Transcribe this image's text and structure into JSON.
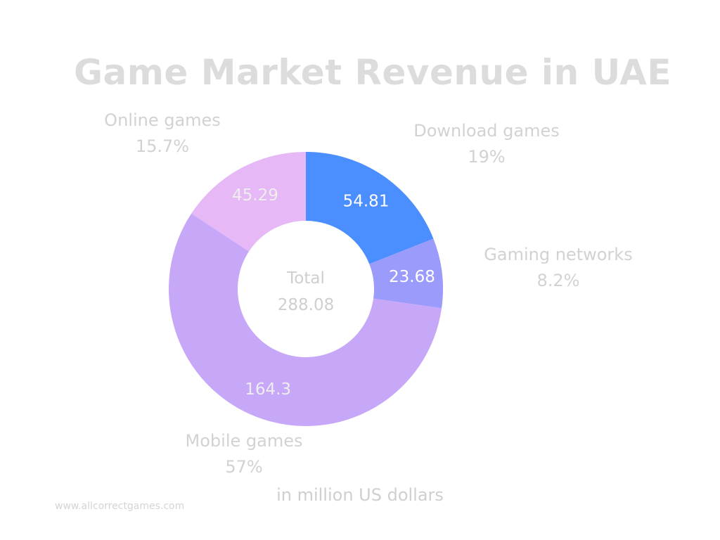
{
  "chart_data": {
    "type": "pie",
    "title": "Game Market Revenue in UAE",
    "unit_note": "in million US dollars",
    "center_label": "Total",
    "center_value": "288.08",
    "slices": [
      {
        "name": "Download games",
        "value": 54.81,
        "value_label": "54.81",
        "percent": "19%",
        "color": "#4a8eff",
        "text_color": "#ffffff"
      },
      {
        "name": "Gaming networks",
        "value": 23.68,
        "value_label": "23.68",
        "percent": "8.2%",
        "color": "#9b9bfb",
        "text_color": "#ffffff"
      },
      {
        "name": "Mobile games",
        "value": 164.3,
        "value_label": "164.3",
        "percent": "57%",
        "color": "#c7a7f8",
        "text_color": "#eeeeee"
      },
      {
        "name": "Online games",
        "value": 45.29,
        "value_label": "45.29",
        "percent": "15.7%",
        "color": "#e6b8f6",
        "text_color": "#eeeeee"
      }
    ]
  },
  "footer": "www.allcorrectgames.com"
}
